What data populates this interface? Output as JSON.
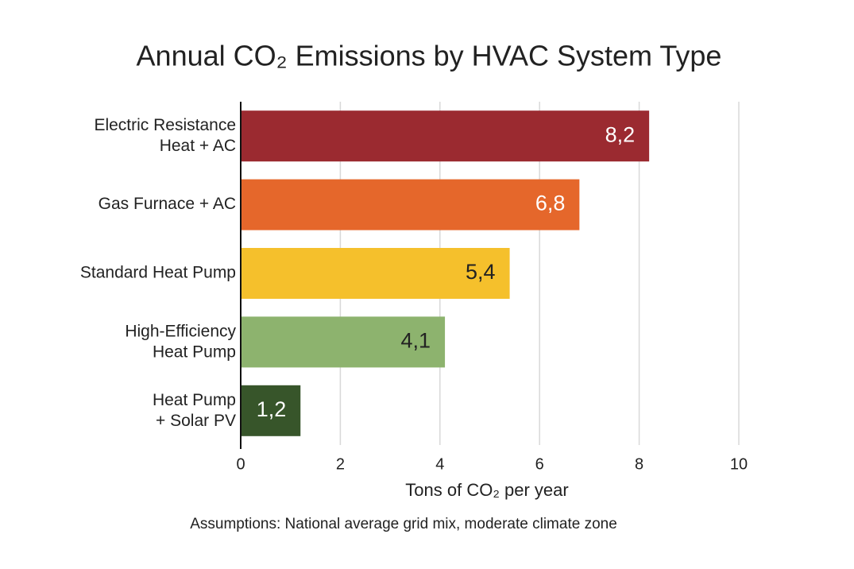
{
  "chart_data": {
    "type": "hbar",
    "title": "Annual CO₂ Emissions by HVAC System Type",
    "categories": [
      "Electric Resistance\nHeat + AC",
      "Gas Furnace + AC",
      "Standard Heat Pump",
      "High-Efficiency\nHeat Pump",
      "Heat Pump\n+ Solar PV"
    ],
    "values": [
      8.2,
      6.8,
      5.4,
      4.1,
      1.2
    ],
    "value_labels": [
      "8,2",
      "6,8",
      "5,4",
      "4,1",
      "1,2"
    ],
    "colors": [
      "#9b2a30",
      "#e5672b",
      "#f5c02c",
      "#8db36e",
      "#37552a"
    ],
    "xlim": [
      0,
      10
    ],
    "xticks": [
      0,
      2,
      4,
      6,
      8,
      10
    ],
    "grid": true,
    "xlabel": "Tons of CO₂ per year",
    "note": "Assumptions: National average grid mix, moderate climate zone"
  }
}
